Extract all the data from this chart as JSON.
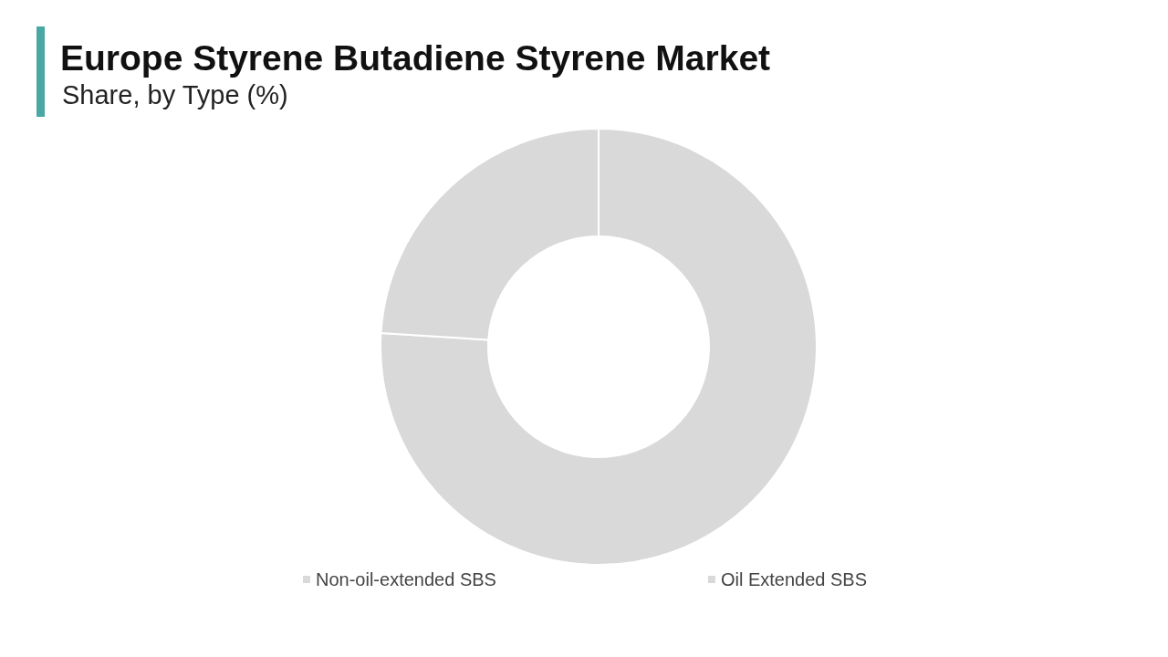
{
  "chart_data": {
    "type": "donut",
    "title": "Europe Styrene Butadiene Styrene Market",
    "subtitle": "Share, by Type (%)",
    "categories": [
      "Non-oil-extended SBS",
      "Oil Extended SBS"
    ],
    "values": [
      76,
      24
    ],
    "colors": [
      "#d9d9d9",
      "#d9d9d9"
    ],
    "legend": "bottom"
  }
}
